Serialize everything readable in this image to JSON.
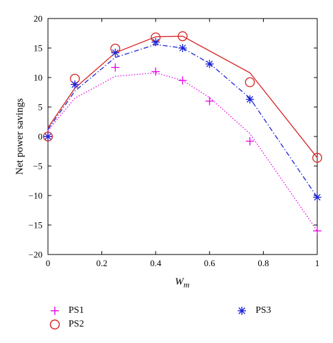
{
  "chart_data": {
    "type": "line",
    "xlabel": "W",
    "xlabel_sub": "m",
    "ylabel": "Net power savings",
    "xlim": [
      0,
      1
    ],
    "ylim": [
      -20,
      20
    ],
    "xticks": [
      0,
      0.2,
      0.4,
      0.6,
      0.8,
      1
    ],
    "xtick_labels": [
      "0",
      "0.2",
      "0.4",
      "0.6",
      "0.8",
      "1"
    ],
    "yticks": [
      -20,
      -15,
      -10,
      -5,
      0,
      5,
      10,
      15,
      20
    ],
    "ytick_labels": [
      "−20",
      "−15",
      "−10",
      "−5",
      "0",
      "5",
      "10",
      "15",
      "20"
    ],
    "grid": false,
    "legend_position": "bottom",
    "series": [
      {
        "name": "PS1",
        "color": "#e600e6",
        "marker": "plus",
        "line_style": "dotted",
        "markers": {
          "x": [
            0,
            0.1,
            0.25,
            0.4,
            0.5,
            0.6,
            0.75,
            1
          ],
          "y": [
            0,
            8.8,
            11.7,
            11,
            9.5,
            6,
            -0.8,
            -16
          ]
        },
        "curve": {
          "x": [
            0,
            0.1,
            0.25,
            0.4,
            0.5,
            0.6,
            0.75,
            1
          ],
          "y": [
            1,
            6.5,
            10.2,
            10.8,
            9.5,
            6.6,
            0.5,
            -16
          ]
        }
      },
      {
        "name": "PS2",
        "color": "#d62020",
        "marker": "circle",
        "line_style": "solid",
        "markers": {
          "x": [
            0,
            0.1,
            0.25,
            0.4,
            0.5,
            0.75,
            1
          ],
          "y": [
            0,
            9.8,
            14.9,
            16.8,
            17,
            9.2,
            -3.6
          ]
        },
        "curve": {
          "x": [
            0,
            0.1,
            0.25,
            0.4,
            0.5,
            0.75,
            1
          ],
          "y": [
            1.5,
            8.2,
            14.2,
            16.9,
            17,
            10.8,
            -3.6
          ]
        }
      },
      {
        "name": "PS3",
        "color": "#1a22d8",
        "marker": "asterisk",
        "line_style": "dashdot",
        "markers": {
          "x": [
            0,
            0.1,
            0.25,
            0.4,
            0.5,
            0.6,
            0.75,
            1
          ],
          "y": [
            0,
            8.8,
            14.2,
            16,
            15,
            12.3,
            6.3,
            -10.3
          ]
        },
        "curve": {
          "x": [
            0,
            0.1,
            0.25,
            0.4,
            0.5,
            0.6,
            0.75,
            1
          ],
          "y": [
            1.2,
            7.7,
            13.4,
            15.6,
            15,
            12.4,
            6.5,
            -10.3
          ]
        }
      }
    ]
  }
}
